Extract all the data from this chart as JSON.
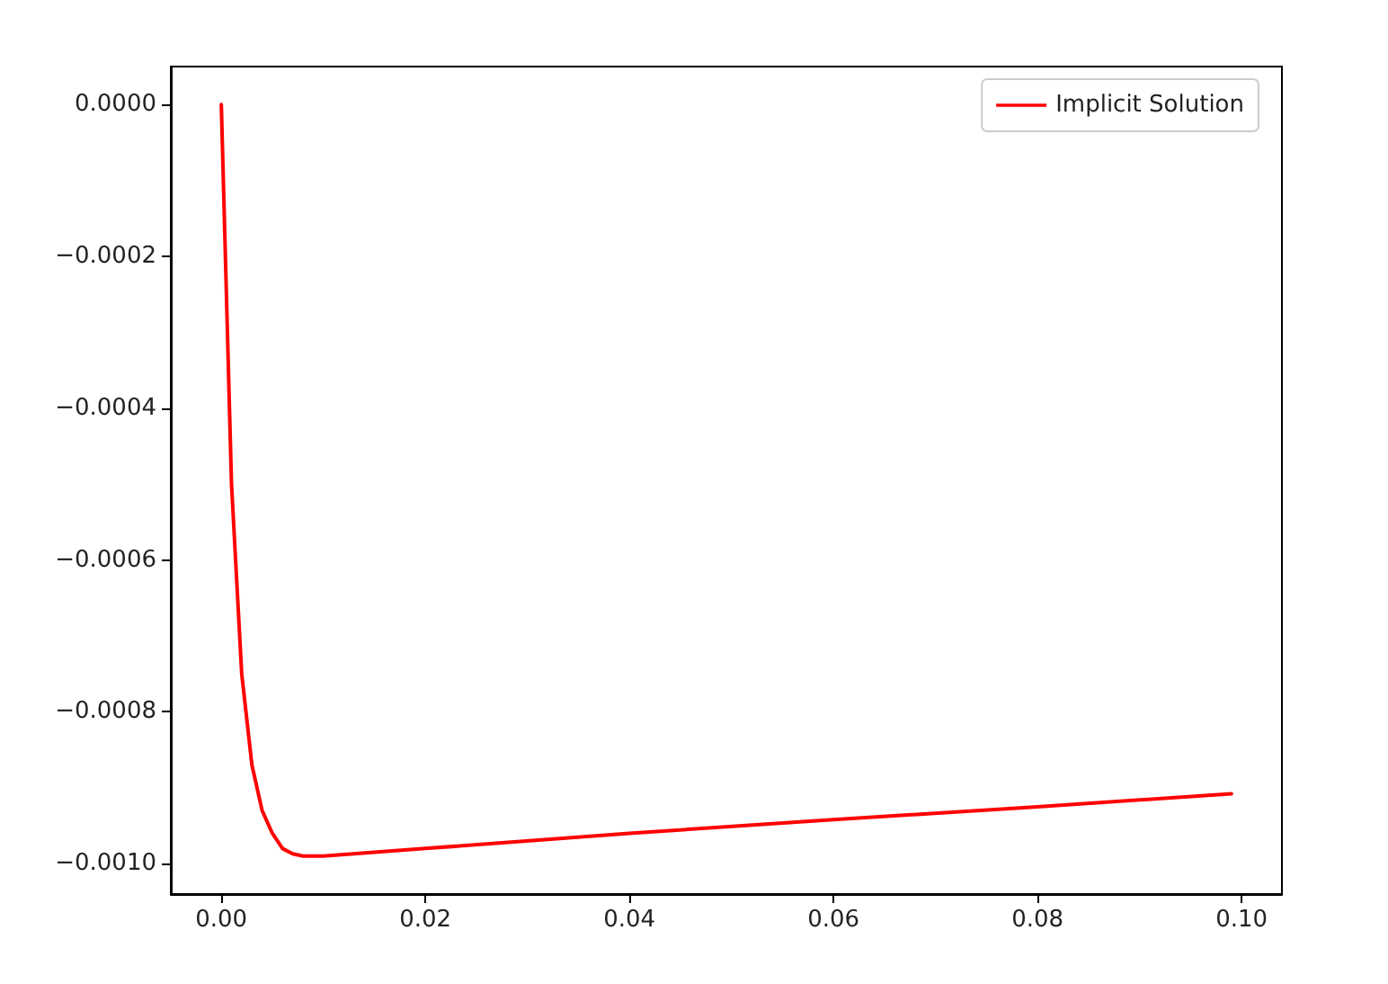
{
  "chart_data": {
    "type": "line",
    "x": [
      0,
      0.001,
      0.002,
      0.003,
      0.004,
      0.005,
      0.006,
      0.007,
      0.008,
      0.009,
      0.01,
      0.02,
      0.04,
      0.06,
      0.08,
      0.099
    ],
    "series": [
      {
        "name": "Implicit Solution",
        "color": "#ff0000",
        "values": [
          0,
          -0.0005,
          -0.00075,
          -0.00087,
          -0.00093,
          -0.00096,
          -0.00098,
          -0.000987,
          -0.00099,
          -0.00099,
          -0.00099,
          -0.00098,
          -0.00096,
          -0.000942,
          -0.000925,
          -0.000908
        ]
      }
    ],
    "xlim": [
      -0.00495,
      0.10395
    ],
    "ylim": [
      -0.00104,
      5e-05
    ],
    "xticks": [
      {
        "value": 0,
        "label": "0.00"
      },
      {
        "value": 0.02,
        "label": "0.02"
      },
      {
        "value": 0.04,
        "label": "0.04"
      },
      {
        "value": 0.06,
        "label": "0.06"
      },
      {
        "value": 0.08,
        "label": "0.08"
      },
      {
        "value": 0.1,
        "label": "0.10"
      }
    ],
    "yticks": [
      {
        "value": 0,
        "label": "0.0000"
      },
      {
        "value": -0.0002,
        "label": "−0.0002"
      },
      {
        "value": -0.0004,
        "label": "−0.0004"
      },
      {
        "value": -0.0006,
        "label": "−0.0006"
      },
      {
        "value": -0.0008,
        "label": "−0.0008"
      },
      {
        "value": -0.001,
        "label": "−0.0010"
      }
    ],
    "legend": "top right",
    "grid": false,
    "marker": "none",
    "line_style": "solid"
  }
}
